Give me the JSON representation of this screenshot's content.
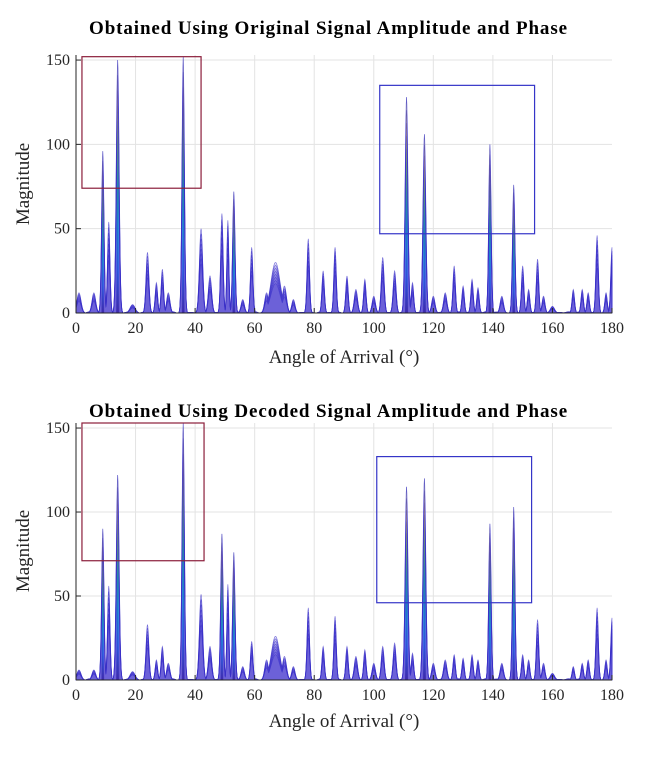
{
  "chart_data": [
    {
      "type": "area",
      "title": "Obtained Using Original Signal Amplitude and Phase",
      "xlabel": "Angle of Arrival (°)",
      "ylabel": "Magnitude",
      "xlim": [
        0,
        180
      ],
      "ylim": [
        0,
        153
      ],
      "xticks": [
        "0",
        "20",
        "40",
        "60",
        "80",
        "100",
        "120",
        "140",
        "160",
        "180"
      ],
      "yticks": [
        "0",
        "50",
        "100",
        "150"
      ],
      "grid": true,
      "colormap": [
        "#3e26a8",
        "#2f64e9",
        "#0fa0d9",
        "#1cbca2",
        "#7fcb5a",
        "#f8ba3d",
        "#f9fb15"
      ],
      "boxes": [
        {
          "x0": 2,
          "x1": 42,
          "y0": 74,
          "y1": 152,
          "color": "#8b1d3a"
        },
        {
          "x0": 102,
          "x1": 154,
          "y0": 47,
          "y1": 135,
          "color": "#3535c8"
        }
      ],
      "peaks": [
        {
          "x": 1,
          "y": 12,
          "w": 1.0
        },
        {
          "x": 6,
          "y": 12,
          "w": 0.9
        },
        {
          "x": 9,
          "y": 96,
          "w": 0.6
        },
        {
          "x": 11,
          "y": 54,
          "w": 0.6
        },
        {
          "x": 14,
          "y": 150,
          "w": 0.7
        },
        {
          "x": 19,
          "y": 5,
          "w": 1.2
        },
        {
          "x": 24,
          "y": 36,
          "w": 0.7
        },
        {
          "x": 27,
          "y": 18,
          "w": 0.6
        },
        {
          "x": 29,
          "y": 26,
          "w": 0.6
        },
        {
          "x": 31,
          "y": 12,
          "w": 0.8
        },
        {
          "x": 36,
          "y": 152,
          "w": 0.6
        },
        {
          "x": 42,
          "y": 50,
          "w": 0.8
        },
        {
          "x": 45,
          "y": 22,
          "w": 0.8
        },
        {
          "x": 49,
          "y": 59,
          "w": 0.6
        },
        {
          "x": 51,
          "y": 55,
          "w": 0.5
        },
        {
          "x": 53,
          "y": 72,
          "w": 0.6
        },
        {
          "x": 56,
          "y": 8,
          "w": 0.8
        },
        {
          "x": 59,
          "y": 39,
          "w": 0.6
        },
        {
          "x": 64,
          "y": 12,
          "w": 0.9
        },
        {
          "x": 67,
          "y": 30,
          "w": 2.2
        },
        {
          "x": 70,
          "y": 16,
          "w": 1.0
        },
        {
          "x": 73,
          "y": 8,
          "w": 0.8
        },
        {
          "x": 78,
          "y": 44,
          "w": 0.6
        },
        {
          "x": 83,
          "y": 25,
          "w": 0.6
        },
        {
          "x": 87,
          "y": 39,
          "w": 0.6
        },
        {
          "x": 91,
          "y": 22,
          "w": 0.6
        },
        {
          "x": 94,
          "y": 14,
          "w": 0.8
        },
        {
          "x": 97,
          "y": 20,
          "w": 0.6
        },
        {
          "x": 100,
          "y": 10,
          "w": 0.8
        },
        {
          "x": 103,
          "y": 33,
          "w": 0.7
        },
        {
          "x": 107,
          "y": 25,
          "w": 0.7
        },
        {
          "x": 111,
          "y": 128,
          "w": 0.7
        },
        {
          "x": 113,
          "y": 18,
          "w": 0.6
        },
        {
          "x": 117,
          "y": 106,
          "w": 0.7
        },
        {
          "x": 120,
          "y": 10,
          "w": 0.8
        },
        {
          "x": 124,
          "y": 12,
          "w": 0.8
        },
        {
          "x": 127,
          "y": 28,
          "w": 0.6
        },
        {
          "x": 130,
          "y": 16,
          "w": 0.6
        },
        {
          "x": 133,
          "y": 20,
          "w": 0.6
        },
        {
          "x": 135,
          "y": 15,
          "w": 0.6
        },
        {
          "x": 139,
          "y": 100,
          "w": 0.6
        },
        {
          "x": 143,
          "y": 10,
          "w": 0.8
        },
        {
          "x": 147,
          "y": 76,
          "w": 0.6
        },
        {
          "x": 150,
          "y": 28,
          "w": 0.6
        },
        {
          "x": 152,
          "y": 14,
          "w": 0.6
        },
        {
          "x": 155,
          "y": 32,
          "w": 0.6
        },
        {
          "x": 157,
          "y": 10,
          "w": 0.7
        },
        {
          "x": 160,
          "y": 4,
          "w": 1.0
        },
        {
          "x": 167,
          "y": 14,
          "w": 0.6
        },
        {
          "x": 170,
          "y": 14,
          "w": 0.6
        },
        {
          "x": 172,
          "y": 12,
          "w": 0.6
        },
        {
          "x": 175,
          "y": 46,
          "w": 0.6
        },
        {
          "x": 178,
          "y": 12,
          "w": 0.6
        },
        {
          "x": 180,
          "y": 39,
          "w": 0.6
        }
      ]
    },
    {
      "type": "area",
      "title": "Obtained Using Decoded Signal Amplitude and Phase",
      "xlabel": "Angle of Arrival (°)",
      "ylabel": "Magnitude",
      "xlim": [
        0,
        180
      ],
      "ylim": [
        0,
        153
      ],
      "xticks": [
        "0",
        "20",
        "40",
        "60",
        "80",
        "100",
        "120",
        "140",
        "160",
        "180"
      ],
      "yticks": [
        "0",
        "50",
        "100",
        "150"
      ],
      "grid": true,
      "colormap": [
        "#3e26a8",
        "#2f64e9",
        "#0fa0d9",
        "#1cbca2",
        "#7fcb5a",
        "#f8ba3d",
        "#f9fb15"
      ],
      "boxes": [
        {
          "x0": 2,
          "x1": 43,
          "y0": 71,
          "y1": 153,
          "color": "#8b1d3a"
        },
        {
          "x0": 101,
          "x1": 153,
          "y0": 46,
          "y1": 133,
          "color": "#3535c8"
        }
      ],
      "peaks": [
        {
          "x": 1,
          "y": 6,
          "w": 1.0
        },
        {
          "x": 6,
          "y": 6,
          "w": 0.9
        },
        {
          "x": 9,
          "y": 90,
          "w": 0.6
        },
        {
          "x": 11,
          "y": 56,
          "w": 0.6
        },
        {
          "x": 14,
          "y": 122,
          "w": 0.7
        },
        {
          "x": 19,
          "y": 5,
          "w": 1.2
        },
        {
          "x": 24,
          "y": 33,
          "w": 0.7
        },
        {
          "x": 27,
          "y": 12,
          "w": 0.6
        },
        {
          "x": 29,
          "y": 20,
          "w": 0.6
        },
        {
          "x": 31,
          "y": 10,
          "w": 0.8
        },
        {
          "x": 36,
          "y": 153,
          "w": 0.6
        },
        {
          "x": 42,
          "y": 51,
          "w": 0.8
        },
        {
          "x": 45,
          "y": 20,
          "w": 0.8
        },
        {
          "x": 49,
          "y": 87,
          "w": 0.6
        },
        {
          "x": 51,
          "y": 57,
          "w": 0.5
        },
        {
          "x": 53,
          "y": 76,
          "w": 0.6
        },
        {
          "x": 56,
          "y": 8,
          "w": 0.8
        },
        {
          "x": 59,
          "y": 23,
          "w": 0.6
        },
        {
          "x": 64,
          "y": 12,
          "w": 0.9
        },
        {
          "x": 67,
          "y": 26,
          "w": 2.0
        },
        {
          "x": 70,
          "y": 14,
          "w": 1.0
        },
        {
          "x": 73,
          "y": 8,
          "w": 0.8
        },
        {
          "x": 78,
          "y": 43,
          "w": 0.6
        },
        {
          "x": 83,
          "y": 20,
          "w": 0.6
        },
        {
          "x": 87,
          "y": 38,
          "w": 0.6
        },
        {
          "x": 91,
          "y": 20,
          "w": 0.6
        },
        {
          "x": 94,
          "y": 14,
          "w": 0.8
        },
        {
          "x": 97,
          "y": 18,
          "w": 0.6
        },
        {
          "x": 100,
          "y": 10,
          "w": 0.8
        },
        {
          "x": 103,
          "y": 20,
          "w": 0.7
        },
        {
          "x": 107,
          "y": 22,
          "w": 0.7
        },
        {
          "x": 111,
          "y": 115,
          "w": 0.7
        },
        {
          "x": 113,
          "y": 16,
          "w": 0.6
        },
        {
          "x": 117,
          "y": 120,
          "w": 0.7
        },
        {
          "x": 120,
          "y": 10,
          "w": 0.8
        },
        {
          "x": 124,
          "y": 12,
          "w": 0.8
        },
        {
          "x": 127,
          "y": 15,
          "w": 0.6
        },
        {
          "x": 130,
          "y": 13,
          "w": 0.6
        },
        {
          "x": 133,
          "y": 15,
          "w": 0.6
        },
        {
          "x": 135,
          "y": 12,
          "w": 0.6
        },
        {
          "x": 139,
          "y": 93,
          "w": 0.6
        },
        {
          "x": 143,
          "y": 10,
          "w": 0.8
        },
        {
          "x": 147,
          "y": 103,
          "w": 0.6
        },
        {
          "x": 150,
          "y": 15,
          "w": 0.6
        },
        {
          "x": 152,
          "y": 12,
          "w": 0.6
        },
        {
          "x": 155,
          "y": 36,
          "w": 0.6
        },
        {
          "x": 157,
          "y": 10,
          "w": 0.7
        },
        {
          "x": 160,
          "y": 4,
          "w": 1.0
        },
        {
          "x": 167,
          "y": 8,
          "w": 0.6
        },
        {
          "x": 170,
          "y": 10,
          "w": 0.6
        },
        {
          "x": 172,
          "y": 12,
          "w": 0.6
        },
        {
          "x": 175,
          "y": 43,
          "w": 0.6
        },
        {
          "x": 178,
          "y": 12,
          "w": 0.6
        },
        {
          "x": 180,
          "y": 37,
          "w": 0.6
        }
      ]
    }
  ]
}
